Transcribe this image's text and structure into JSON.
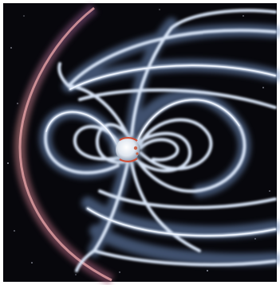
{
  "image": {
    "subject": "magnetosphere-illustration",
    "colors": {
      "space": "#07070c",
      "field_lines": "#c9d8ee",
      "field_glow": "#6f8fc0",
      "bow_shock": "#c77a86",
      "earth": "#e9eef4",
      "aurora": "#d4482e",
      "border": "#ffffff"
    }
  }
}
